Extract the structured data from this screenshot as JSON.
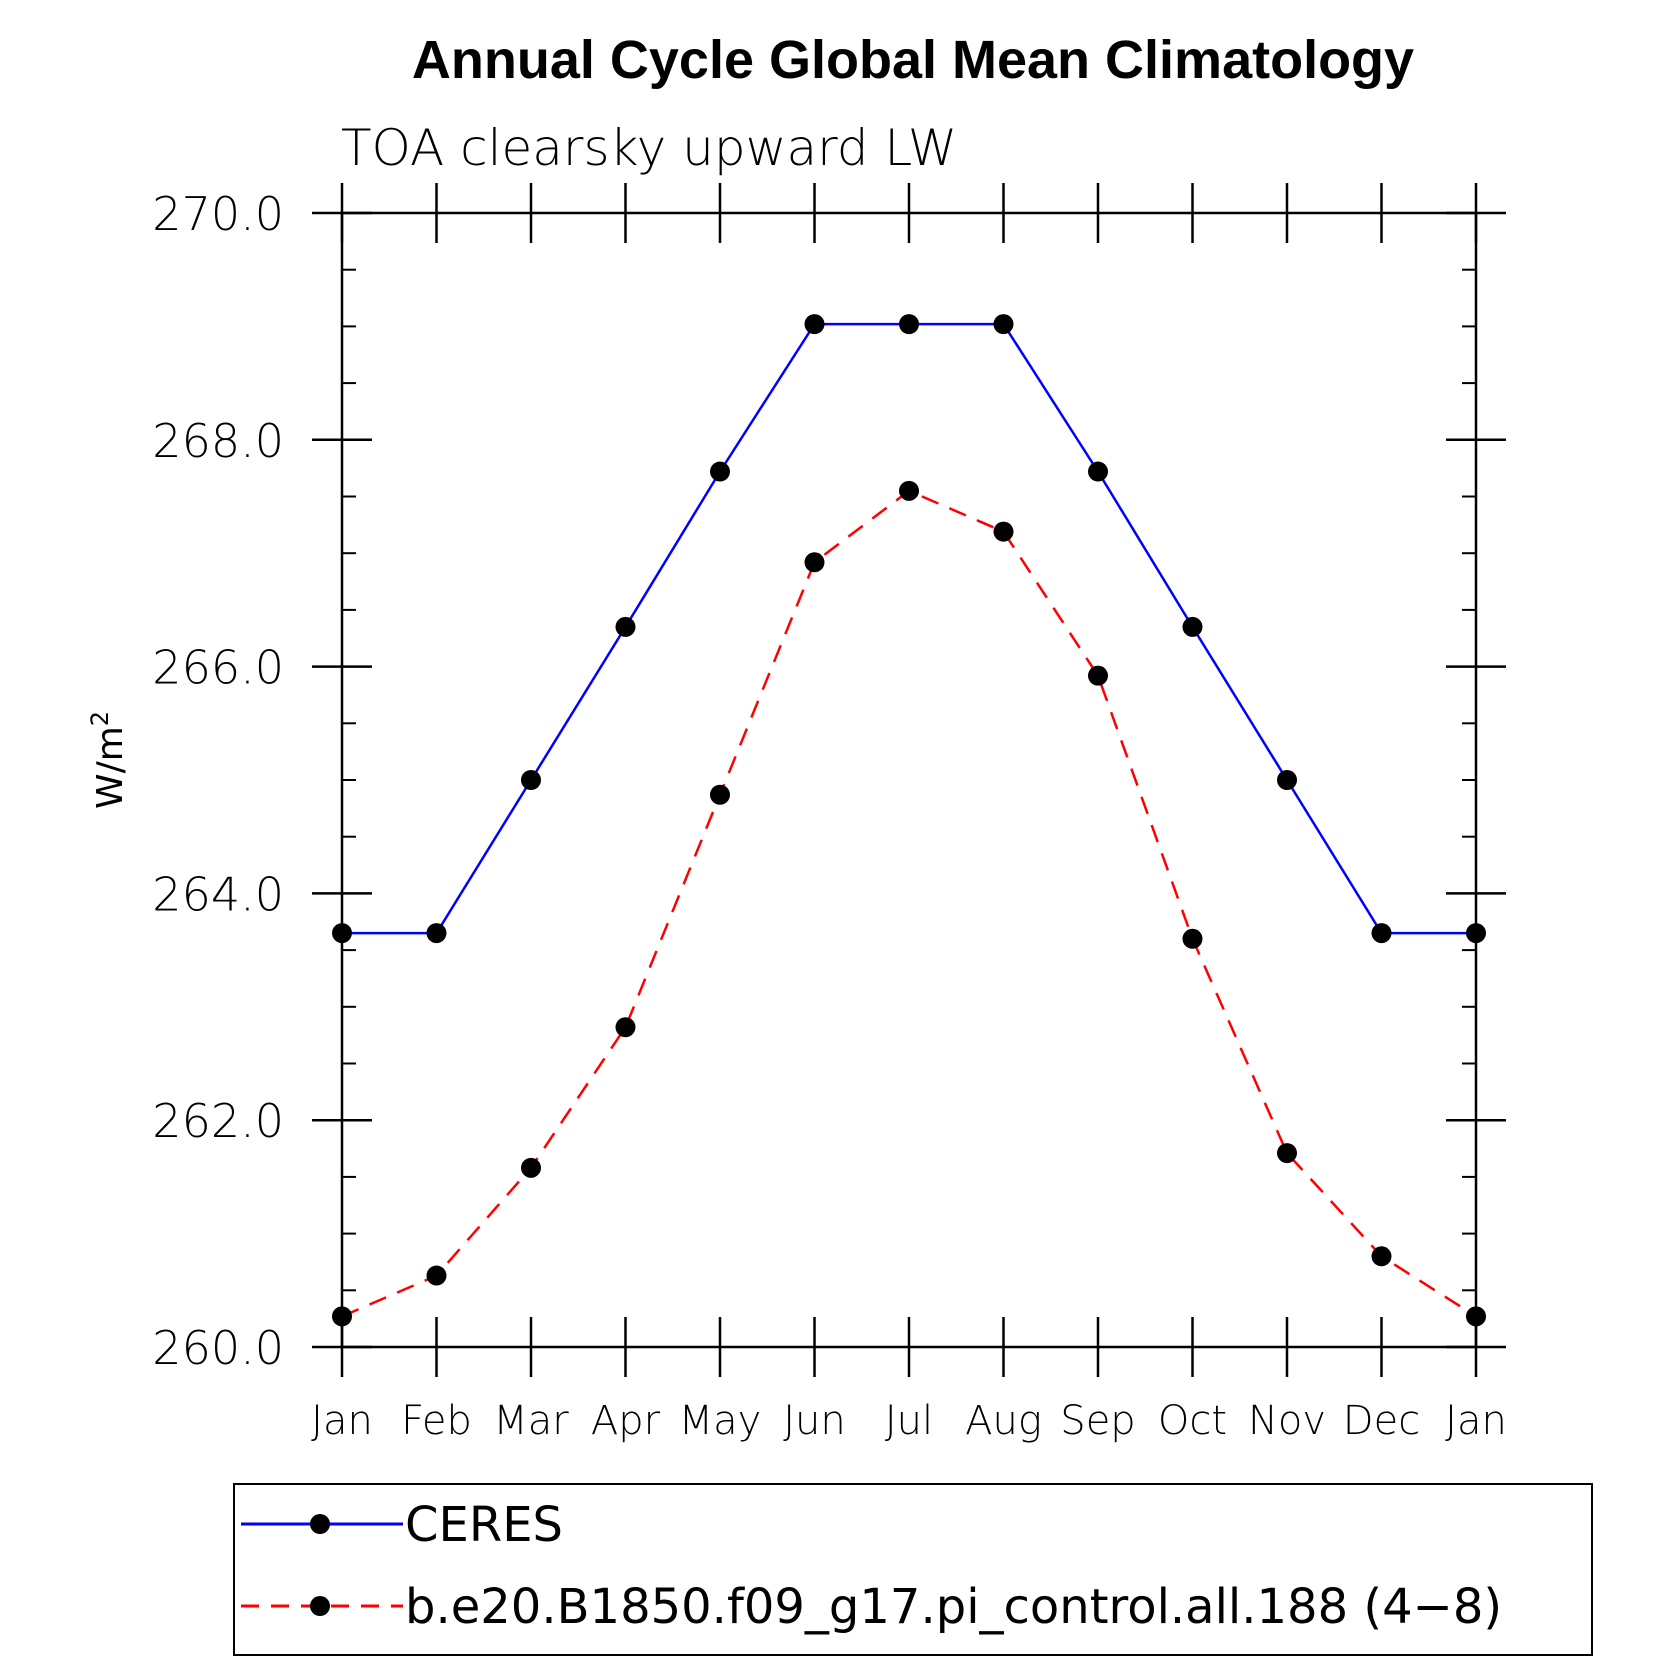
{
  "chart_data": {
    "type": "line",
    "title": "Annual Cycle Global Mean Climatology",
    "subtitle": "TOA clearsky upward LW",
    "ylabel_base": "W/m",
    "ylabel_sup": "2",
    "xlabel": "",
    "categories": [
      "Jan",
      "Feb",
      "Mar",
      "Apr",
      "May",
      "Jun",
      "Jul",
      "Aug",
      "Sep",
      "Oct",
      "Nov",
      "Dec",
      "Jan"
    ],
    "ylim": [
      260.0,
      270.0
    ],
    "yticks": [
      "260.0",
      "262.0",
      "264.0",
      "266.0",
      "268.0",
      "270.0"
    ],
    "grid": false,
    "legend_position": "bottom",
    "series": [
      {
        "name": "CERES",
        "color": "#0000ff",
        "dash": "solid",
        "values": [
          263.65,
          263.65,
          265.0,
          266.35,
          267.72,
          269.02,
          269.02,
          269.02,
          267.72,
          266.35,
          265.0,
          263.65,
          263.65
        ]
      },
      {
        "name": "b.e20.B1850.f09_g17.pi_control.all.188 (4−8)",
        "color": "#ff0000",
        "dash": "dashed",
        "values": [
          260.27,
          260.63,
          261.58,
          262.82,
          264.87,
          266.92,
          267.55,
          267.19,
          265.92,
          263.6,
          261.71,
          260.8,
          260.27
        ]
      }
    ]
  }
}
